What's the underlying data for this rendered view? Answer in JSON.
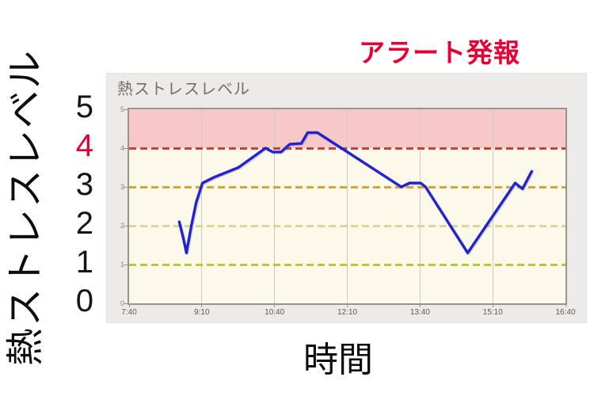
{
  "alert": {
    "label": "アラート発報",
    "color": "#e60033"
  },
  "panel": {
    "title": "熱ストレスレベル"
  },
  "y_axis": {
    "title": "熱ストレスレベル",
    "values": [
      "5",
      "4",
      "3",
      "2",
      "1",
      "0"
    ],
    "highlight_value": "4",
    "highlight_color": "#e60033"
  },
  "x_axis": {
    "title": "時間"
  },
  "chart_data": {
    "type": "line",
    "title": "熱ストレスレベル",
    "xlabel": "時間",
    "ylabel": "熱ストレスレベル",
    "x_ticks": [
      "7:40",
      "9:10",
      "10:40",
      "12:10",
      "13:40",
      "15:10",
      "16:40"
    ],
    "x_range_hours": [
      7.6667,
      16.6667
    ],
    "ylim": [
      0,
      5
    ],
    "y_ticks": [
      5,
      4,
      3,
      2,
      1,
      0
    ],
    "grid": true,
    "grid_color": "#ccccc5",
    "plot_background": "#fcf9ea",
    "alert_zone": {
      "from": 4,
      "to": 5,
      "color": "#f8c8c8"
    },
    "threshold_lines": [
      {
        "level": 4,
        "color": "#cb4134"
      },
      {
        "level": 3,
        "color": "#d6a635"
      },
      {
        "level": 2,
        "color": "#dbd695"
      },
      {
        "level": 1,
        "color": "#b6cb33"
      }
    ],
    "series": [
      {
        "name": "熱ストレスレベル",
        "color": "#2323cd",
        "points": [
          {
            "time": "8:42",
            "h": 8.7,
            "v": 2.1
          },
          {
            "time": "8:47",
            "h": 8.78,
            "v": 1.7
          },
          {
            "time": "8:51",
            "h": 8.85,
            "v": 1.3
          },
          {
            "time": "8:57",
            "h": 8.95,
            "v": 2.0
          },
          {
            "time": "9:03",
            "h": 9.05,
            "v": 2.6
          },
          {
            "time": "9:11",
            "h": 9.18,
            "v": 3.1
          },
          {
            "time": "9:25",
            "h": 9.42,
            "v": 3.25
          },
          {
            "time": "9:55",
            "h": 9.92,
            "v": 3.5
          },
          {
            "time": "10:29",
            "h": 10.48,
            "v": 4.0
          },
          {
            "time": "10:38",
            "h": 10.63,
            "v": 3.9
          },
          {
            "time": "10:48",
            "h": 10.8,
            "v": 3.9
          },
          {
            "time": "10:59",
            "h": 10.98,
            "v": 4.1
          },
          {
            "time": "11:13",
            "h": 11.22,
            "v": 4.12
          },
          {
            "time": "11:21",
            "h": 11.35,
            "v": 4.4
          },
          {
            "time": "11:33",
            "h": 11.55,
            "v": 4.4
          },
          {
            "time": "12:10",
            "h": 12.17,
            "v": 3.9
          },
          {
            "time": "13:17",
            "h": 13.28,
            "v": 3.0
          },
          {
            "time": "13:27",
            "h": 13.45,
            "v": 3.1
          },
          {
            "time": "13:41",
            "h": 13.68,
            "v": 3.1
          },
          {
            "time": "13:47",
            "h": 13.78,
            "v": 3.0
          },
          {
            "time": "14:39",
            "h": 14.65,
            "v": 1.3
          },
          {
            "time": "15:38",
            "h": 15.63,
            "v": 3.1
          },
          {
            "time": "15:47",
            "h": 15.78,
            "v": 2.95
          },
          {
            "time": "15:58",
            "h": 15.97,
            "v": 3.4
          }
        ]
      }
    ]
  }
}
